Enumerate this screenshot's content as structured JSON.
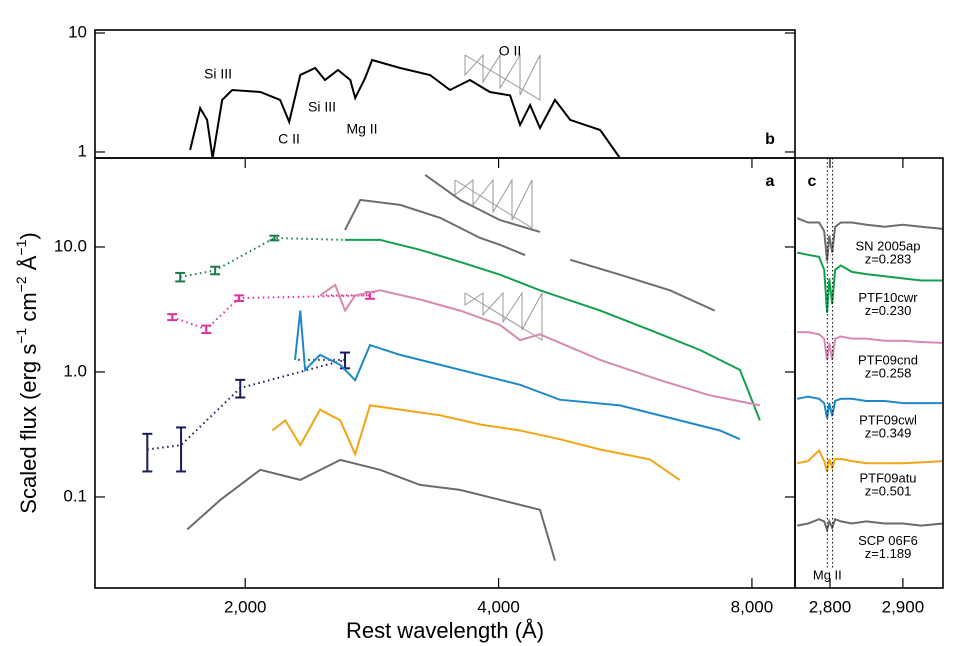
{
  "chart_data": [
    {
      "type": "line",
      "panel_label": "b",
      "xscale": "log",
      "yscale": "log",
      "xlim": [
        1326,
        9000
      ],
      "ylim": [
        0.89,
        10.6
      ],
      "yticks": [
        1,
        10
      ],
      "annotations": [
        "Si III",
        "C II",
        "Si III",
        "Mg II",
        "O II"
      ],
      "series": [
        {
          "color": "#000000",
          "x": [
            1720,
            1768,
            1802,
            1829,
            1878,
            1930,
            2084,
            2200,
            2256,
            2325,
            2422,
            2488,
            2578,
            2666,
            2702,
            2776,
            2830,
            3056,
            3316,
            3502,
            3698,
            3906,
            4128,
            4242,
            4360,
            4480,
            4668,
            4866,
            5282,
            5574
          ],
          "values": [
            1.04,
            2.34,
            1.86,
            0.89,
            2.74,
            3.32,
            3.19,
            2.74,
            1.79,
            4.44,
            5.08,
            4.03,
            4.89,
            4.03,
            2.84,
            4.18,
            5.93,
            5.08,
            4.44,
            3.32,
            4.03,
            3.19,
            2.99,
            1.69,
            2.48,
            1.59,
            2.74,
            1.86,
            1.53,
            0.89
          ]
        }
      ]
    },
    {
      "type": "line",
      "panel_label": "a",
      "xscale": "log",
      "yscale": "log",
      "xlim": [
        1326,
        9000
      ],
      "ylim": [
        0.0187,
        51.5
      ],
      "xticks": [
        {
          "value": 2000,
          "label": "2,000"
        },
        {
          "value": 4000,
          "label": "4,000"
        },
        {
          "value": 8000,
          "label": "8,000"
        }
      ],
      "yticks": [
        0.1,
        {
          "value": 1,
          "label": "1.0"
        },
        {
          "value": 10,
          "label": "10.0"
        }
      ],
      "xlabel": "Rest wavelength (Å)",
      "ylabel": [
        {
          "text": "Scaled flux (erg s"
        },
        {
          "text": "−1",
          "sup": true
        },
        {
          "text": " cm"
        },
        {
          "text": "−2",
          "sup": true
        },
        {
          "text": " Å"
        },
        {
          "text": "−1",
          "sup": true
        },
        {
          "text": ")"
        }
      ],
      "series": [
        {
          "color": "#6d6d6d",
          "x": [
            2628,
            2740,
            3056,
            3410,
            3804,
            4016,
            4302,
            null,
            3272,
            3600,
            4016,
            4480,
            null,
            4866,
            5574,
            6394,
            7224
          ],
          "values": [
            13.7,
            23.8,
            21.7,
            17.1,
            11.8,
            10.4,
            8.6,
            null,
            37.7,
            23.8,
            16.4,
            13.2,
            null,
            7.9,
            6.0,
            4.5,
            3.1
          ]
        },
        {
          "color": "#12a04c",
          "phot_color": "#1a7a48",
          "phot_x": [
            1674,
            1842,
            2166
          ],
          "phot_values": [
            5.75,
            6.5,
            11.8
          ],
          "phot_errors": [
            0.45,
            0.45,
            0.5
          ],
          "x": [
            2628,
            2892,
            3226,
            3600,
            4016,
            4480,
            5282,
            6050,
            6940,
            7740,
            8176
          ],
          "values": [
            11.4,
            11.4,
            9.5,
            7.6,
            6.0,
            4.5,
            3.1,
            2.17,
            1.5,
            1.04,
            0.41
          ]
        },
        {
          "color": "#d68ab2",
          "phot_color": "#e0309a",
          "phot_x": [
            1638,
            1798,
            1967,
            2814
          ],
          "phot_values": [
            2.75,
            2.2,
            3.9,
            4.1
          ],
          "phot_errors": [
            0.15,
            0.15,
            0.2,
            0.25
          ],
          "x": [
            2455,
            2558,
            2628,
            2702,
            2892,
            3226,
            3600,
            4016,
            4242,
            4480,
            5282,
            6222,
            7134,
            8176
          ],
          "values": [
            4.1,
            4.97,
            3.1,
            4.1,
            4.5,
            3.8,
            3.1,
            2.38,
            1.8,
            2.0,
            1.25,
            0.86,
            0.65,
            0.54
          ]
        },
        {
          "color": "#1f88c9",
          "phot_color": "#1a1a5e",
          "phot_x": [
            1530,
            1678,
            1973,
            2628
          ],
          "phot_values": [
            0.24,
            0.26,
            0.745,
            1.25
          ],
          "phot_errors": [
            0.08,
            0.1,
            0.12,
            0.18
          ],
          "x": [
            2292,
            2325,
            2356,
            2455,
            2594,
            2702,
            2814,
            3056,
            3410,
            3804,
            4242,
            4728,
            5574,
            6566,
            7328,
            7740
          ],
          "values": [
            1.25,
            3.1,
            1.04,
            1.37,
            1.14,
            0.86,
            1.64,
            1.37,
            1.14,
            0.95,
            0.79,
            0.6,
            0.54,
            0.41,
            0.34,
            0.29
          ]
        },
        {
          "color": "#f2a516",
          "x": [
            2154,
            2232,
            2325,
            2455,
            2594,
            2702,
            2814,
            3056,
            3410,
            3804,
            4242,
            4728,
            5282,
            6050,
            6566
          ],
          "values": [
            0.34,
            0.41,
            0.26,
            0.5,
            0.41,
            0.22,
            0.54,
            0.5,
            0.45,
            0.38,
            0.34,
            0.29,
            0.24,
            0.2,
            0.137
          ]
        },
        {
          "color": "#6b6b6b",
          "x": [
            1707,
            1869,
            2084,
            2325,
            2594,
            2892,
            3226,
            3600,
            4016,
            4480,
            4668
          ],
          "values": [
            0.055,
            0.095,
            0.165,
            0.137,
            0.198,
            0.165,
            0.125,
            0.114,
            0.095,
            0.079,
            0.031
          ]
        }
      ]
    },
    {
      "type": "line",
      "panel_label": "c",
      "xlim": [
        2752,
        2955
      ],
      "ylim": [
        0,
        10
      ],
      "xticks": [
        {
          "value": 2800,
          "label": "2,800"
        },
        {
          "value": 2900,
          "label": "2,900"
        }
      ],
      "lines_x": [
        2796.35,
        2803.53
      ],
      "lines_label": "Mg II",
      "x": [
        2755,
        2770,
        2785,
        2792,
        2796,
        2799,
        2803,
        2807,
        2815,
        2830,
        2850,
        2875,
        2900,
        2925,
        2955
      ],
      "series": [
        {
          "name": "SN 2005ap",
          "z": "z=0.283",
          "color": "#6d6d6d",
          "values": [
            8.6,
            8.5,
            8.5,
            8.3,
            7.6,
            8.2,
            7.8,
            8.4,
            8.5,
            8.5,
            8.45,
            8.4,
            8.45,
            8.4,
            8.35
          ]
        },
        {
          "name": "PTF10cwr",
          "z": "z=0.230",
          "color": "#12a04c",
          "values": [
            7.8,
            7.75,
            7.7,
            7.4,
            6.4,
            7.2,
            6.6,
            7.4,
            7.5,
            7.35,
            7.3,
            7.25,
            7.2,
            7.15,
            7.15
          ]
        },
        {
          "name": "PTF09cnd",
          "z": "z=0.258",
          "color": "#d68ab2",
          "values": [
            5.95,
            5.95,
            5.9,
            5.8,
            5.3,
            5.7,
            5.3,
            5.8,
            5.85,
            5.8,
            5.8,
            5.75,
            5.75,
            5.72,
            5.7
          ]
        },
        {
          "name": "PTF09cwl",
          "z": "z=0.349",
          "color": "#1f88c9",
          "values": [
            4.4,
            4.45,
            4.4,
            4.3,
            3.95,
            4.3,
            4.0,
            4.35,
            4.4,
            4.4,
            4.35,
            4.35,
            4.3,
            4.3,
            4.3
          ]
        },
        {
          "name": "PTF09atu",
          "z": "z=0.501",
          "color": "#f2a516",
          "values": [
            2.9,
            2.95,
            3.2,
            2.95,
            2.7,
            3.0,
            2.8,
            3.0,
            3.0,
            2.95,
            2.9,
            2.9,
            2.9,
            2.92,
            2.95
          ]
        },
        {
          "name": "SCP 06F6",
          "z": "z=1.189",
          "color": "#6b6b6b",
          "values": [
            1.45,
            1.5,
            1.6,
            1.55,
            1.35,
            1.55,
            1.4,
            1.6,
            1.55,
            1.5,
            1.55,
            1.5,
            1.5,
            1.45,
            1.5
          ]
        }
      ]
    }
  ]
}
